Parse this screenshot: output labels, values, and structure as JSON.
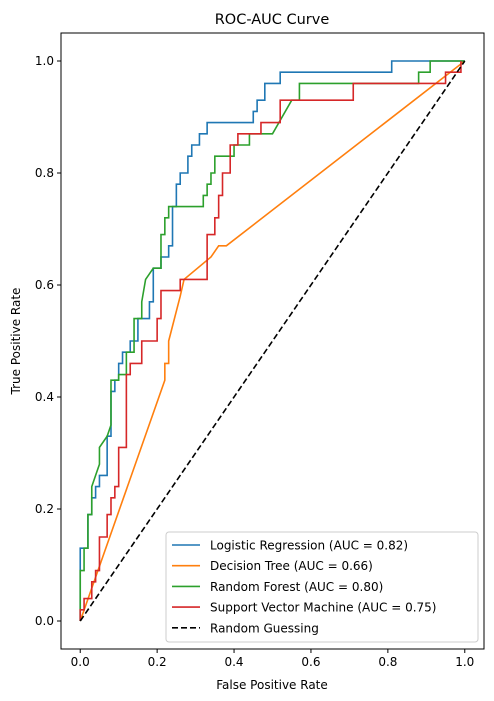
{
  "chart_data": {
    "type": "line",
    "title": "ROC-AUC Curve",
    "xlabel": "False Positive Rate",
    "ylabel": "True Positive Rate",
    "xlim": [
      -0.05,
      1.05
    ],
    "ylim": [
      -0.05,
      1.05
    ],
    "xticks": [
      0.0,
      0.2,
      0.4,
      0.6,
      0.8,
      1.0
    ],
    "xtick_labels": [
      "0.0",
      "0.2",
      "0.4",
      "0.6",
      "0.8",
      "1.0"
    ],
    "yticks": [
      0.0,
      0.2,
      0.4,
      0.6,
      0.8,
      1.0
    ],
    "ytick_labels": [
      "0.0",
      "0.2",
      "0.4",
      "0.6",
      "0.8",
      "1.0"
    ],
    "grid": false,
    "legend_position": "lower-right",
    "series": [
      {
        "name": "Logistic Regression (AUC = 0.82)",
        "color": "#1f77b4",
        "style": "solid",
        "x": [
          0,
          0,
          0.02,
          0.02,
          0.03,
          0.03,
          0.04,
          0.04,
          0.05,
          0.05,
          0.07,
          0.07,
          0.08,
          0.08,
          0.09,
          0.09,
          0.1,
          0.1,
          0.11,
          0.11,
          0.13,
          0.13,
          0.15,
          0.15,
          0.18,
          0.18,
          0.19,
          0.19,
          0.21,
          0.21,
          0.23,
          0.23,
          0.24,
          0.24,
          0.25,
          0.25,
          0.26,
          0.26,
          0.28,
          0.28,
          0.29,
          0.29,
          0.31,
          0.31,
          0.33,
          0.33,
          0.45,
          0.45,
          0.46,
          0.46,
          0.48,
          0.48,
          0.52,
          0.52,
          0.81,
          0.81,
          1.0
        ],
        "y": [
          0,
          0.13,
          0.13,
          0.19,
          0.19,
          0.22,
          0.22,
          0.24,
          0.24,
          0.26,
          0.26,
          0.33,
          0.33,
          0.41,
          0.41,
          0.43,
          0.43,
          0.46,
          0.46,
          0.48,
          0.48,
          0.5,
          0.5,
          0.54,
          0.54,
          0.57,
          0.57,
          0.63,
          0.63,
          0.65,
          0.65,
          0.67,
          0.67,
          0.74,
          0.74,
          0.78,
          0.78,
          0.8,
          0.8,
          0.83,
          0.83,
          0.85,
          0.85,
          0.87,
          0.87,
          0.89,
          0.89,
          0.91,
          0.91,
          0.93,
          0.93,
          0.96,
          0.96,
          0.98,
          0.98,
          1.0,
          1.0
        ]
      },
      {
        "name": "Decision Tree (AUC = 0.66)",
        "color": "#ff7f0e",
        "style": "solid",
        "x": [
          0,
          0.22,
          0.22,
          0.23,
          0.23,
          0.26,
          0.27,
          0.34,
          0.36,
          0.38,
          1.0
        ],
        "y": [
          0,
          0.43,
          0.46,
          0.46,
          0.5,
          0.58,
          0.61,
          0.65,
          0.67,
          0.67,
          1.0
        ],
        "interpolation": "linear"
      },
      {
        "name": "Random Forest (AUC = 0.80)",
        "color": "#2ca02c",
        "style": "solid",
        "x": [
          0,
          0,
          0.01,
          0.01,
          0.02,
          0.02,
          0.03,
          0.03,
          0.04,
          0.05,
          0.05,
          0.07,
          0.08,
          0.08,
          0.1,
          0.1,
          0.12,
          0.12,
          0.14,
          0.14,
          0.16,
          0.16,
          0.17,
          0.18,
          0.19,
          0.19,
          0.21,
          0.21,
          0.22,
          0.22,
          0.23,
          0.23,
          0.32,
          0.32,
          0.33,
          0.33,
          0.34,
          0.34,
          0.35,
          0.35,
          0.4,
          0.4,
          0.44,
          0.44,
          0.5,
          0.55,
          0.57,
          0.57,
          0.66,
          0.66,
          0.88,
          0.88,
          0.91,
          0.91,
          1.0
        ],
        "y": [
          0,
          0.09,
          0.09,
          0.13,
          0.13,
          0.19,
          0.19,
          0.24,
          0.26,
          0.28,
          0.31,
          0.33,
          0.35,
          0.43,
          0.43,
          0.44,
          0.44,
          0.48,
          0.48,
          0.54,
          0.54,
          0.57,
          0.61,
          0.62,
          0.63,
          0.63,
          0.63,
          0.69,
          0.69,
          0.72,
          0.72,
          0.74,
          0.74,
          0.76,
          0.76,
          0.78,
          0.78,
          0.8,
          0.8,
          0.83,
          0.83,
          0.85,
          0.85,
          0.87,
          0.87,
          0.93,
          0.93,
          0.96,
          0.96,
          0.96,
          0.96,
          0.98,
          0.98,
          1.0,
          1.0
        ]
      },
      {
        "name": "Support Vector Machine (AUC = 0.75)",
        "color": "#d62728",
        "style": "solid",
        "x": [
          0,
          0,
          0.01,
          0.01,
          0.03,
          0.03,
          0.04,
          0.04,
          0.05,
          0.05,
          0.07,
          0.07,
          0.08,
          0.08,
          0.09,
          0.09,
          0.1,
          0.1,
          0.12,
          0.12,
          0.13,
          0.13,
          0.16,
          0.16,
          0.2,
          0.2,
          0.21,
          0.21,
          0.26,
          0.26,
          0.33,
          0.33,
          0.35,
          0.35,
          0.36,
          0.36,
          0.37,
          0.37,
          0.39,
          0.39,
          0.41,
          0.41,
          0.47,
          0.47,
          0.52,
          0.52,
          0.71,
          0.71,
          0.73,
          0.73,
          0.95,
          0.95,
          0.99,
          0.99
        ],
        "y": [
          0,
          0.02,
          0.02,
          0.04,
          0.04,
          0.07,
          0.07,
          0.09,
          0.09,
          0.15,
          0.15,
          0.19,
          0.19,
          0.22,
          0.22,
          0.24,
          0.24,
          0.31,
          0.31,
          0.44,
          0.44,
          0.46,
          0.46,
          0.5,
          0.5,
          0.54,
          0.54,
          0.59,
          0.59,
          0.61,
          0.61,
          0.69,
          0.69,
          0.72,
          0.72,
          0.76,
          0.76,
          0.8,
          0.8,
          0.85,
          0.85,
          0.87,
          0.87,
          0.89,
          0.89,
          0.93,
          0.93,
          0.96,
          0.96,
          0.96,
          0.96,
          0.98,
          0.98,
          1.0
        ]
      },
      {
        "name": "Random Guessing",
        "color": "#000000",
        "style": "dashed",
        "x": [
          0,
          1
        ],
        "y": [
          0,
          1
        ]
      }
    ]
  }
}
